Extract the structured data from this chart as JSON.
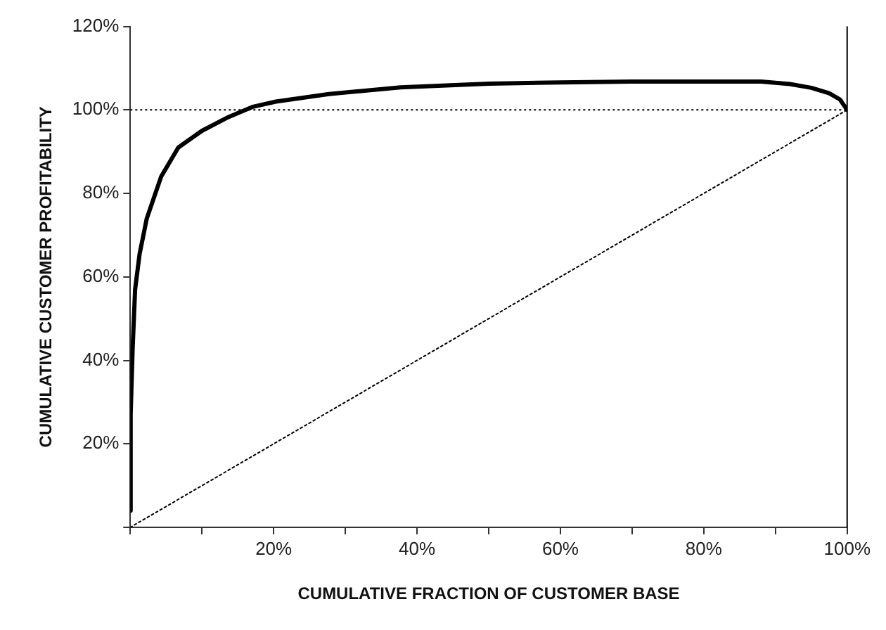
{
  "chart_data": {
    "type": "line",
    "xlabel": "CUMULATIVE FRACTION OF CUSTOMER BASE",
    "ylabel": "CUMULATIVE CUSTOMER PROFITABILITY",
    "xlim": [
      0,
      100
    ],
    "ylim": [
      0,
      120
    ],
    "xticks": [
      {
        "value": 0,
        "label": null
      },
      {
        "value": 10,
        "label": null
      },
      {
        "value": 20,
        "label": "20%"
      },
      {
        "value": 30,
        "label": null
      },
      {
        "value": 40,
        "label": "40%"
      },
      {
        "value": 50,
        "label": null
      },
      {
        "value": 60,
        "label": "60%"
      },
      {
        "value": 70,
        "label": null
      },
      {
        "value": 80,
        "label": "80%"
      },
      {
        "value": 90,
        "label": null
      },
      {
        "value": 100,
        "label": "100%"
      }
    ],
    "yticks": [
      {
        "value": 0,
        "label": null
      },
      {
        "value": 20,
        "label": "20%"
      },
      {
        "value": 40,
        "label": "40%"
      },
      {
        "value": 60,
        "label": "60%"
      },
      {
        "value": 80,
        "label": "80%"
      },
      {
        "value": 100,
        "label": "100%"
      },
      {
        "value": 120,
        "label": "120%"
      }
    ],
    "grid": false,
    "legend": false,
    "marker": "none",
    "series": [
      {
        "color": "#000000",
        "line_style": "solid",
        "x": [
          0,
          0.05,
          0.33,
          0.67,
          1.3,
          2.3,
          4.3,
          6.7,
          10,
          13.7,
          17,
          20.3,
          27.7,
          37.7,
          50,
          60,
          70,
          80,
          88,
          92,
          95,
          97.5,
          99,
          100
        ],
        "values": [
          4,
          27,
          43,
          57,
          65.5,
          74,
          84,
          91,
          95,
          98.3,
          100.7,
          102,
          103.8,
          105.4,
          106.3,
          106.6,
          106.8,
          106.8,
          106.8,
          106.2,
          105.3,
          104,
          102.5,
          100
        ]
      },
      {
        "color": "#000000",
        "line_style": "dotted",
        "x": [
          0,
          100
        ],
        "values": [
          0,
          100
        ]
      }
    ],
    "ref_lines": [
      {
        "axis": "y",
        "value": 100,
        "line_style": "dotted",
        "color": "#000000"
      },
      {
        "axis": "x",
        "value": 100,
        "line_style": "solid",
        "color": "#000000"
      }
    ]
  }
}
